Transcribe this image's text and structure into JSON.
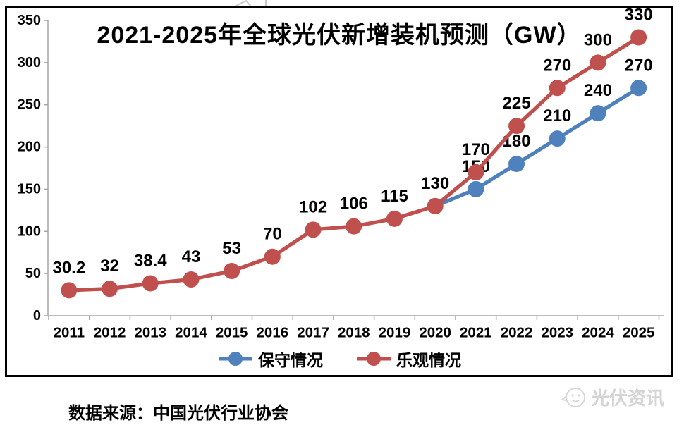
{
  "chart_data": {
    "type": "line",
    "title": "2021-2025年全球光伏新增装机预测（GW）",
    "categories": [
      "2011",
      "2012",
      "2013",
      "2014",
      "2015",
      "2016",
      "2017",
      "2018",
      "2019",
      "2020",
      "2021",
      "2022",
      "2023",
      "2024",
      "2025"
    ],
    "series": [
      {
        "id": "conservative",
        "name": "保守情况",
        "color": "#4F81BD",
        "start_index": 9,
        "values": [
          130,
          150,
          180,
          210,
          240,
          270
        ],
        "labels": [
          null,
          "150",
          "180",
          "210",
          "240",
          "270"
        ]
      },
      {
        "id": "optimistic",
        "name": "乐观情况",
        "color": "#C0504D",
        "start_index": 0,
        "values": [
          30.2,
          32,
          38.4,
          43,
          53,
          70,
          102,
          106,
          115,
          130,
          170,
          225,
          270,
          300,
          330
        ],
        "labels": [
          "30.2",
          "32",
          "38.4",
          "43",
          "53",
          "70",
          "102",
          "106",
          "115",
          "130",
          "170",
          "225",
          "270",
          "300",
          "330"
        ]
      }
    ],
    "ylim": [
      0,
      350
    ],
    "yticks": [
      0,
      50,
      100,
      150,
      200,
      250,
      300,
      350
    ],
    "xlabel": "",
    "ylabel": "",
    "grid": false,
    "legend_position": "bottom-center",
    "axis_color": "#A6A6A6",
    "label_color": "#000000"
  },
  "footer": {
    "source": "数据来源：中国光伏行业协会",
    "logo_text": "光伏资讯"
  }
}
